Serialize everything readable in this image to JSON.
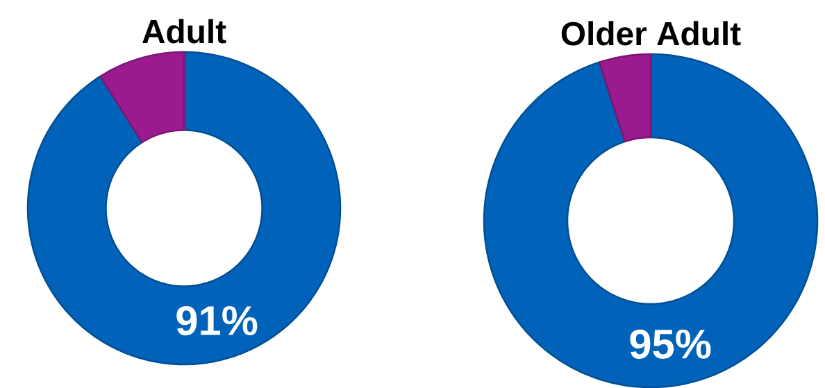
{
  "chart_data": [
    {
      "type": "donut",
      "title": "Adult",
      "categories": [
        null,
        null
      ],
      "values": [
        91,
        9
      ],
      "colors": [
        "#0063b9",
        "#9c1a8f"
      ],
      "value_labels": [
        "91%",
        null
      ]
    },
    {
      "type": "donut",
      "title": "Older Adult",
      "categories": [
        null,
        null
      ],
      "values": [
        95,
        5
      ],
      "colors": [
        "#0063b9",
        "#9c1a8f"
      ],
      "value_labels": [
        "95%",
        null
      ]
    }
  ]
}
